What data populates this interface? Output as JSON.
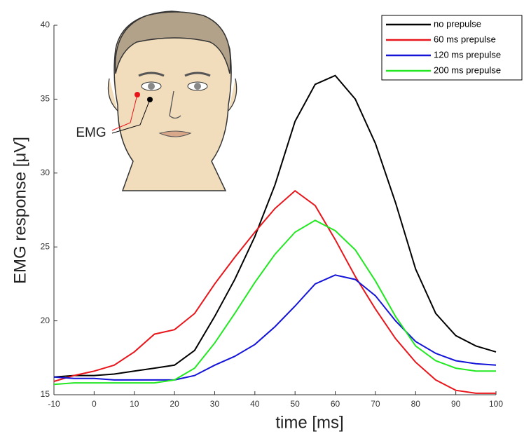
{
  "chart_data": {
    "type": "line",
    "xlabel": "time [ms]",
    "ylabel": "EMG response [μV]",
    "annotation": "EMG",
    "x": [
      -10,
      -5,
      0,
      5,
      10,
      15,
      20,
      25,
      30,
      35,
      40,
      45,
      50,
      55,
      60,
      65,
      70,
      75,
      80,
      85,
      90,
      95,
      100
    ],
    "series": [
      {
        "name": "no prepulse",
        "color": "#000000",
        "values": [
          16.2,
          16.3,
          16.3,
          16.4,
          16.6,
          16.8,
          17.0,
          18.0,
          20.3,
          22.8,
          25.7,
          29.2,
          33.5,
          36.0,
          36.6,
          35.0,
          32.0,
          28.0,
          23.5,
          20.5,
          19.0,
          18.3,
          17.9
        ]
      },
      {
        "name": "60 ms prepulse",
        "color": "#e8161b",
        "values": [
          15.9,
          16.3,
          16.6,
          17.0,
          17.9,
          19.1,
          19.4,
          20.5,
          22.5,
          24.3,
          26.0,
          27.6,
          28.8,
          27.8,
          25.5,
          23.0,
          20.8,
          18.8,
          17.2,
          16.0,
          15.3,
          15.1,
          15.1
        ]
      },
      {
        "name": "120 ms prepulse",
        "color": "#1414d8",
        "values": [
          16.2,
          16.1,
          16.1,
          16.0,
          16.0,
          16.0,
          16.0,
          16.3,
          17.0,
          17.6,
          18.4,
          19.6,
          21.0,
          22.5,
          23.1,
          22.8,
          21.7,
          20.0,
          18.6,
          17.8,
          17.3,
          17.1,
          17.0
        ]
      },
      {
        "name": "200 ms prepulse",
        "color": "#22e822",
        "values": [
          15.7,
          15.8,
          15.8,
          15.8,
          15.8,
          15.8,
          16.0,
          16.8,
          18.5,
          20.5,
          22.6,
          24.5,
          26.0,
          26.8,
          26.1,
          24.8,
          22.7,
          20.3,
          18.3,
          17.3,
          16.8,
          16.6,
          16.6
        ]
      }
    ],
    "xlim": [
      -10,
      100
    ],
    "ylim": [
      15,
      40
    ],
    "xticks": [
      -10,
      0,
      10,
      20,
      30,
      40,
      50,
      60,
      70,
      80,
      90,
      100
    ],
    "yticks": [
      15,
      20,
      25,
      30,
      35,
      40
    ],
    "grid": false,
    "legend": "upper right"
  }
}
